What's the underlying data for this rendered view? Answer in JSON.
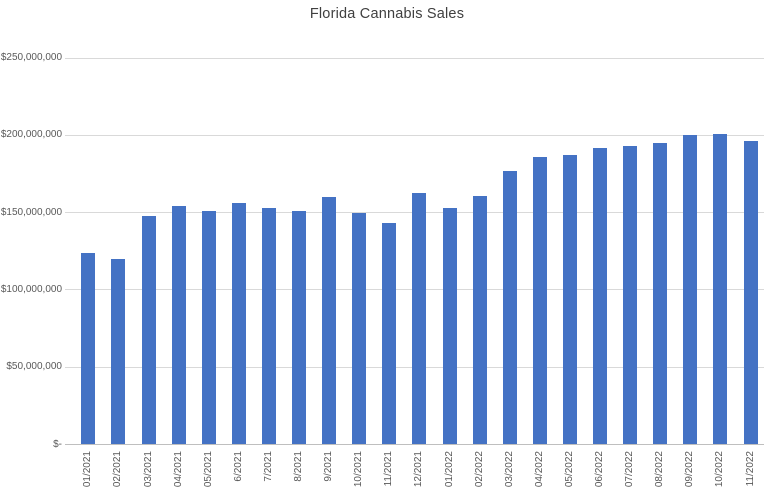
{
  "chart_data": {
    "type": "bar",
    "title": "Florida Cannabis Sales",
    "xlabel": "",
    "ylabel": "",
    "ylim": [
      0,
      250000000
    ],
    "grid": "horizontal-gridlines-on",
    "legend": "none",
    "bar_color": "#4472C4",
    "categories": [
      "01/2021",
      "02/2021",
      "03/2021",
      "04/2021",
      "05/2021",
      "6/2021",
      "7/2021",
      "8/2021",
      "9/2021",
      "10/2021",
      "11/2021",
      "12/2021",
      "01/2022",
      "02/2022",
      "03/2022",
      "04/2022",
      "05/2022",
      "06/2022",
      "07/2022",
      "08/2022",
      "09/2022",
      "10/2022",
      "11/2022"
    ],
    "values": [
      124000000,
      120000000,
      148000000,
      154000000,
      151000000,
      156000000,
      153000000,
      151000000,
      160000000,
      150000000,
      143000000,
      163000000,
      153000000,
      161000000,
      177000000,
      186000000,
      187000000,
      192000000,
      193000000,
      195000000,
      200000000,
      201000000,
      196000000
    ],
    "y_ticks": [
      {
        "label": "$250,000,000",
        "value": 250000000
      },
      {
        "label": "$200,000,000",
        "value": 200000000
      },
      {
        "label": "$150,000,000",
        "value": 150000000
      },
      {
        "label": "$100,000,000",
        "value": 100000000
      },
      {
        "label": "$50,000,000",
        "value": 50000000
      },
      {
        "label": "$-",
        "value": 0
      }
    ]
  },
  "colors": {
    "background": "#FFFFFF",
    "bar": "#4472C4",
    "gridline": "#D9D9D9",
    "axis_line": "#BFBFBF",
    "title_text": "#404040",
    "tick_text": "#595959"
  }
}
